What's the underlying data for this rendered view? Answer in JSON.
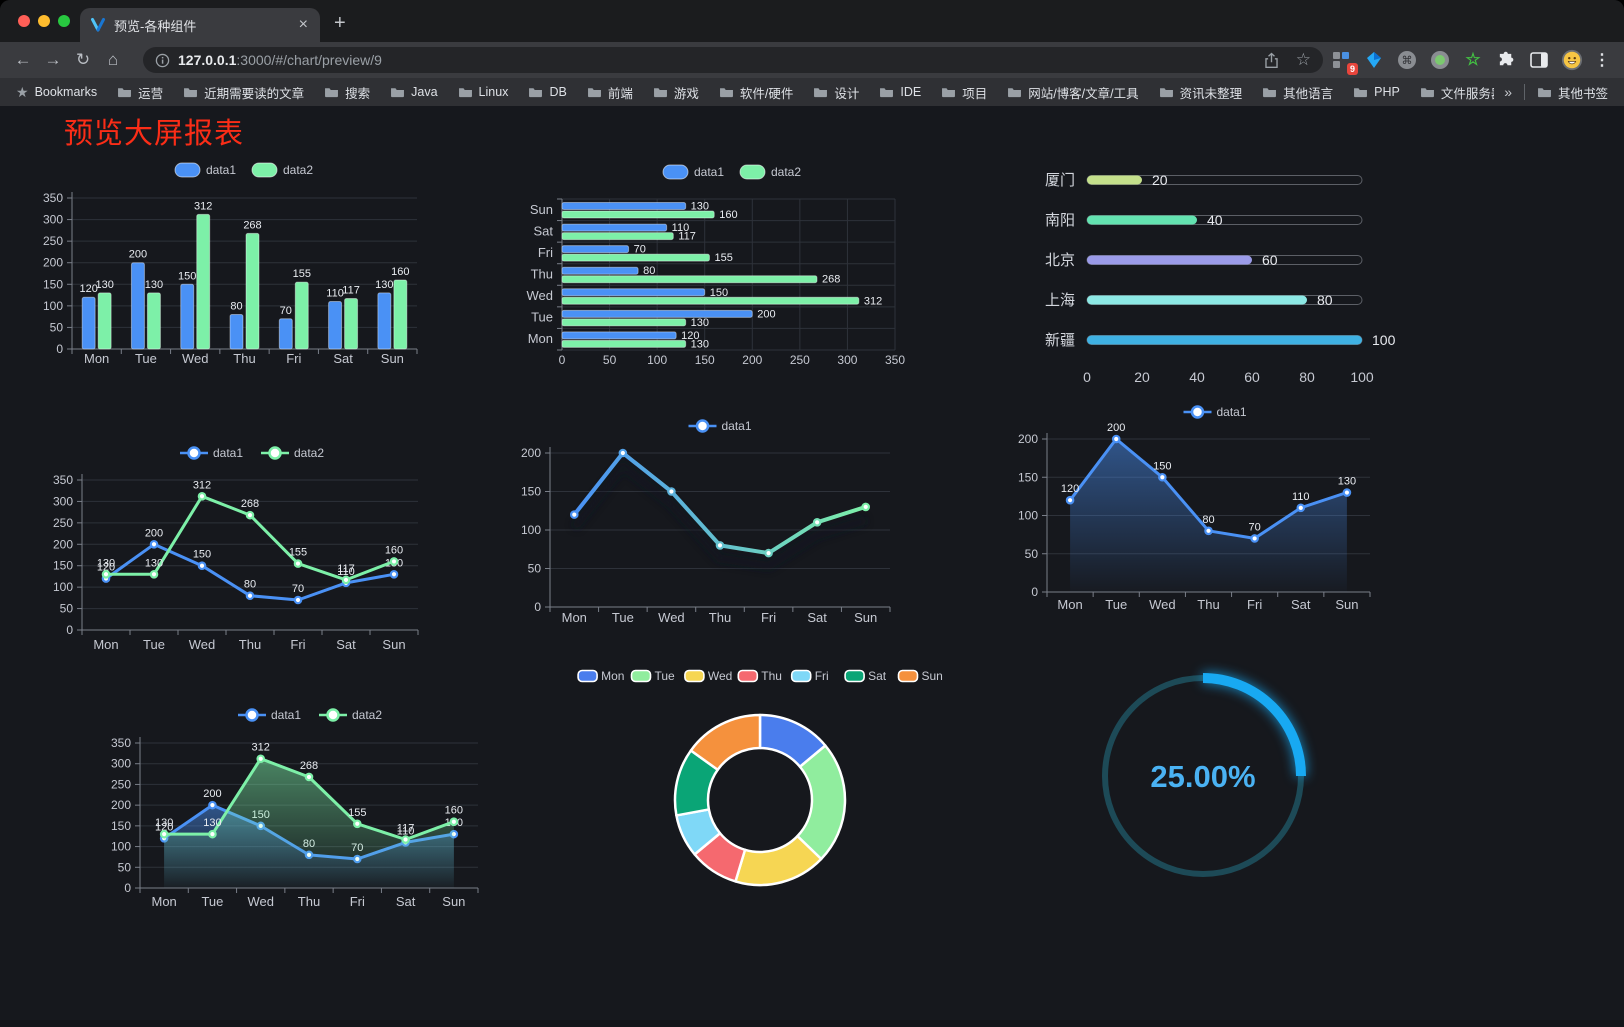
{
  "browser": {
    "tab_title": "预览-各种组件",
    "tab_close": "×",
    "new_tab": "+",
    "url_host": "127.0.0.1",
    "url_rest": ":3000/#/chart/preview/9",
    "extension_badge": "9",
    "menu_icon": "⋮",
    "bookmarks": {
      "label": "Bookmarks",
      "folders": [
        "运营",
        "近期需要读的文章",
        "搜索",
        "Java",
        "Linux",
        "DB",
        "前端",
        "游戏",
        "软件/硬件",
        "设计",
        "IDE",
        "项目",
        "网站/博客/文章/工具",
        "资讯未整理",
        "其他语言",
        "PHP",
        "文件服务器"
      ],
      "overflow": "»",
      "other_bookmarks": "其他书签"
    }
  },
  "page": {
    "title": "预览大屏报表",
    "title_color": "#fb2d17"
  },
  "colors": {
    "blue": "#4a91f5",
    "green": "#7df0a8",
    "grid": "#2e323a",
    "axis_line": "#7a7f89",
    "axis_text": "#c6c9d2",
    "value_text": "#e9ecf1",
    "legend_text": "#c6c9d2"
  },
  "chart_data": [
    {
      "type": "bar",
      "orientation": "vertical",
      "categories": [
        "Mon",
        "Tue",
        "Wed",
        "Thu",
        "Fri",
        "Sat",
        "Sun"
      ],
      "series": [
        {
          "name": "data1",
          "color": "#4a91f5",
          "values": [
            120,
            200,
            150,
            80,
            70,
            110,
            130
          ]
        },
        {
          "name": "data2",
          "color": "#7df0a8",
          "values": [
            130,
            130,
            312,
            268,
            155,
            117,
            160
          ]
        }
      ],
      "ylim": [
        0,
        350
      ],
      "yticks": [
        0,
        50,
        100,
        150,
        200,
        250,
        300,
        350
      ],
      "legend_position": "top",
      "grid": true,
      "show_labels": true
    },
    {
      "type": "bar",
      "orientation": "horizontal",
      "categories": [
        "Mon",
        "Tue",
        "Wed",
        "Thu",
        "Fri",
        "Sat",
        "Sun"
      ],
      "category_order": "bottom-to-top",
      "series": [
        {
          "name": "data1",
          "color": "#4a91f5",
          "values": [
            120,
            200,
            150,
            80,
            70,
            110,
            130
          ]
        },
        {
          "name": "data2",
          "color": "#7df0a8",
          "values": [
            130,
            130,
            312,
            268,
            155,
            117,
            160
          ]
        }
      ],
      "xlim": [
        0,
        350
      ],
      "xticks": [
        0,
        50,
        100,
        150,
        200,
        250,
        300,
        350
      ],
      "legend_position": "top",
      "grid": true,
      "show_labels": true
    },
    {
      "type": "bar",
      "orientation": "horizontal-progress",
      "categories": [
        "厦门",
        "南阳",
        "北京",
        "上海",
        "新疆"
      ],
      "values": [
        20,
        40,
        60,
        80,
        100
      ],
      "bar_colors": [
        "#c4e08b",
        "#63e2b0",
        "#9a9ae8",
        "#8ce8e4",
        "#3fb1e3"
      ],
      "xlim": [
        0,
        100
      ],
      "xticks": [
        0,
        20,
        40,
        60,
        80,
        100
      ],
      "show_labels": true
    },
    {
      "type": "line",
      "categories": [
        "Mon",
        "Tue",
        "Wed",
        "Thu",
        "Fri",
        "Sat",
        "Sun"
      ],
      "series": [
        {
          "name": "data1",
          "color": "#4a91f5",
          "values": [
            120,
            200,
            150,
            80,
            70,
            110,
            130
          ]
        },
        {
          "name": "data2",
          "color": "#7df0a8",
          "values": [
            130,
            130,
            312,
            268,
            155,
            117,
            160
          ]
        }
      ],
      "ylim": [
        0,
        350
      ],
      "yticks": [
        0,
        50,
        100,
        150,
        200,
        250,
        300,
        350
      ],
      "legend_position": "top",
      "grid": true,
      "show_labels": true
    },
    {
      "type": "line",
      "categories": [
        "Mon",
        "Tue",
        "Wed",
        "Thu",
        "Fri",
        "Sat",
        "Sun"
      ],
      "series": [
        {
          "name": "data1",
          "gradient": [
            "#4a91f5",
            "#7df0a8"
          ],
          "shadow": true,
          "values": [
            120,
            200,
            150,
            80,
            70,
            110,
            130
          ]
        }
      ],
      "ylim": [
        0,
        200
      ],
      "yticks": [
        0,
        50,
        100,
        150,
        200
      ],
      "legend_position": "top",
      "grid": true,
      "show_labels": false
    },
    {
      "type": "area",
      "categories": [
        "Mon",
        "Tue",
        "Wed",
        "Thu",
        "Fri",
        "Sat",
        "Sun"
      ],
      "series": [
        {
          "name": "data1",
          "color": "#4a91f5",
          "area": true,
          "values": [
            120,
            200,
            150,
            80,
            70,
            110,
            130
          ]
        }
      ],
      "ylim": [
        0,
        200
      ],
      "yticks": [
        0,
        50,
        100,
        150,
        200
      ],
      "legend_position": "top",
      "grid": true,
      "show_labels": true
    },
    {
      "type": "area",
      "categories": [
        "Mon",
        "Tue",
        "Wed",
        "Thu",
        "Fri",
        "Sat",
        "Sun"
      ],
      "series": [
        {
          "name": "data1",
          "color": "#4a91f5",
          "area": true,
          "values": [
            120,
            200,
            150,
            80,
            70,
            110,
            130
          ]
        },
        {
          "name": "data2",
          "color": "#7df0a8",
          "area": true,
          "values": [
            130,
            130,
            312,
            268,
            155,
            117,
            160
          ]
        }
      ],
      "ylim": [
        0,
        350
      ],
      "yticks": [
        0,
        50,
        100,
        150,
        200,
        250,
        300,
        350
      ],
      "legend_position": "top",
      "grid": true,
      "show_labels": true
    },
    {
      "type": "pie",
      "donut": true,
      "labels": [
        "Mon",
        "Tue",
        "Wed",
        "Thu",
        "Fri",
        "Sat",
        "Sun"
      ],
      "values": [
        120,
        200,
        150,
        80,
        70,
        110,
        130
      ],
      "slice_colors": [
        "#4a7ded",
        "#90ed9e",
        "#f6d653",
        "#f5696f",
        "#7fd8f7",
        "#0aa576",
        "#f5913d"
      ],
      "legend_position": "top"
    },
    {
      "type": "gauge",
      "percent": 25,
      "display": "25.00%",
      "arc_color": "#18a9f2",
      "track_color": "#1d4a57",
      "text_color": "#4ab2f3"
    }
  ]
}
